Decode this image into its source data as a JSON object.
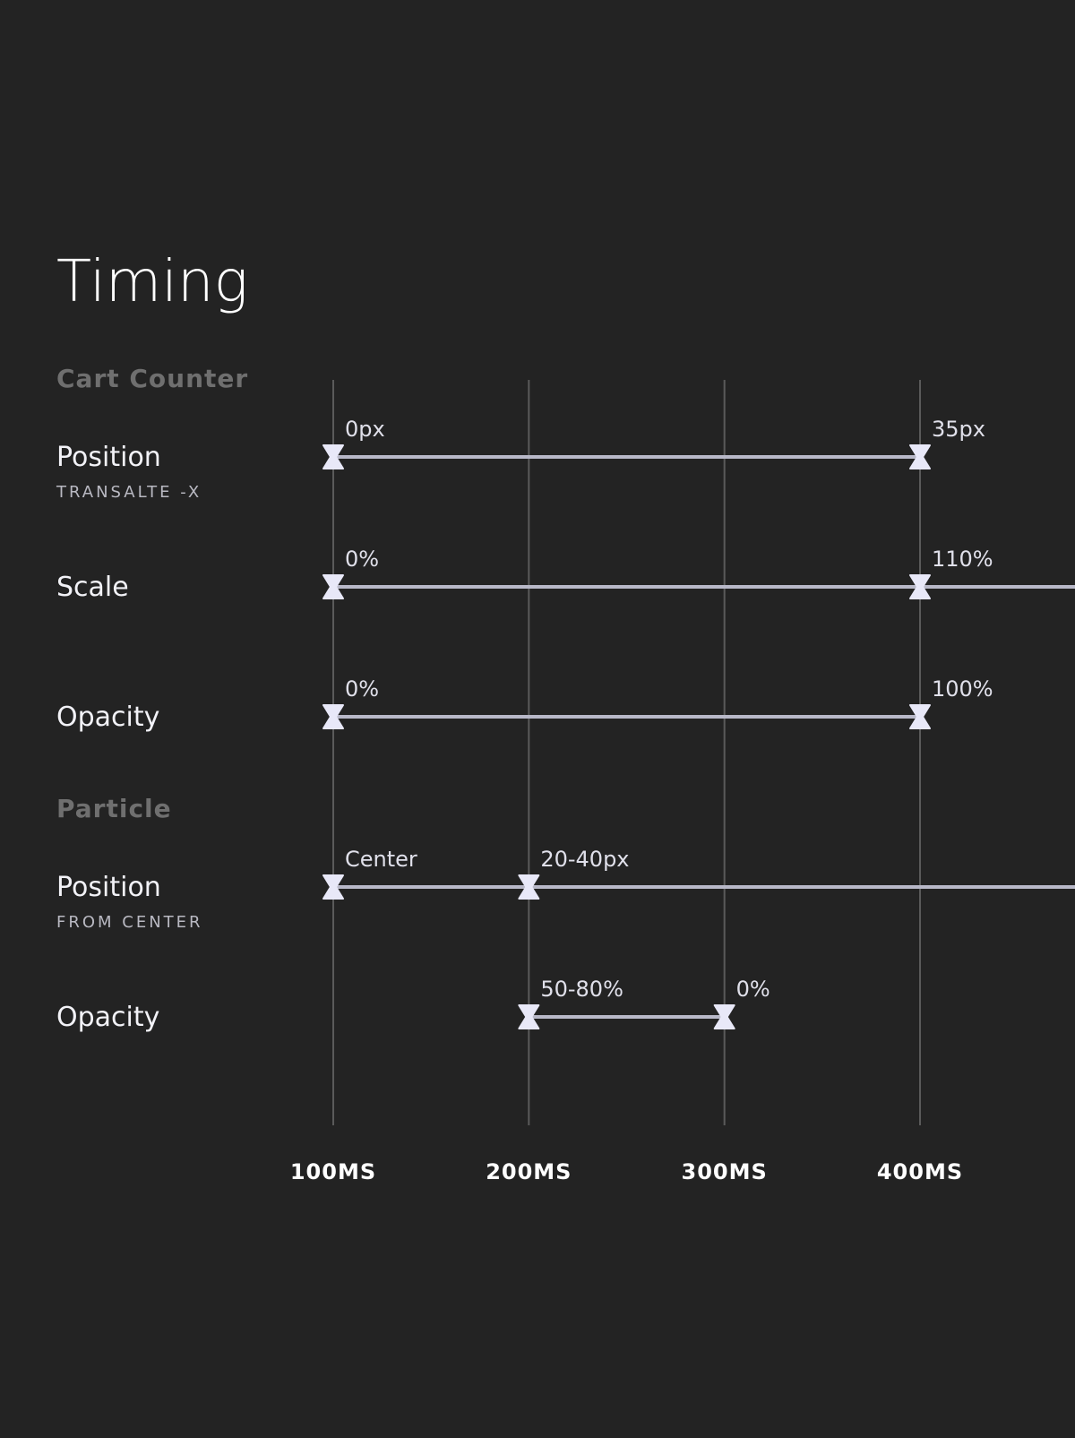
{
  "title": "Timing",
  "time_axis": {
    "unit": "ms",
    "ticks": [
      100,
      200,
      300,
      400
    ],
    "tick_labels": [
      "100MS",
      "200MS",
      "300MS",
      "400MS"
    ]
  },
  "colors": {
    "background": "#232323",
    "track": "#b8b8c8",
    "keyframe": "#e8e8f8",
    "section_label": "#6f6f6f"
  },
  "sections": [
    {
      "name": "Cart Counter",
      "rows": [
        {
          "label": "Position",
          "sublabel": "TRANSALTE -X",
          "keyframes": [
            {
              "t": 100,
              "label": "0px"
            },
            {
              "t": 400,
              "label": "35px"
            }
          ],
          "extends_past_end": false
        },
        {
          "label": "Scale",
          "sublabel": "",
          "keyframes": [
            {
              "t": 100,
              "label": "0%"
            },
            {
              "t": 400,
              "label": "110%"
            }
          ],
          "extends_past_end": true
        },
        {
          "label": "Opacity",
          "sublabel": "",
          "keyframes": [
            {
              "t": 100,
              "label": "0%"
            },
            {
              "t": 400,
              "label": "100%"
            }
          ],
          "extends_past_end": false
        }
      ]
    },
    {
      "name": "Particle",
      "rows": [
        {
          "label": "Position",
          "sublabel": "FROM CENTER",
          "keyframes": [
            {
              "t": 100,
              "label": "Center"
            },
            {
              "t": 200,
              "label": "20-40px"
            }
          ],
          "extends_past_end": true
        },
        {
          "label": "Opacity",
          "sublabel": "",
          "keyframes": [
            {
              "t": 200,
              "label": "50-80%"
            },
            {
              "t": 300,
              "label": "0%"
            }
          ],
          "extends_past_end": false
        }
      ]
    }
  ]
}
